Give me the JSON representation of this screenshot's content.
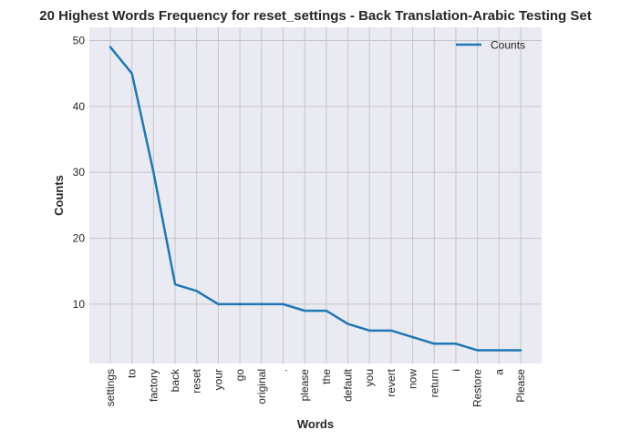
{
  "chart_data": {
    "type": "line",
    "title": "20 Highest Words Frequency for reset_settings - Back Translation-Arabic Testing Set",
    "xlabel": "Words",
    "ylabel": "Counts",
    "categories": [
      "settings",
      "to",
      "factory",
      "back",
      "reset",
      "your",
      "go",
      "original",
      ".",
      "please",
      "the",
      "default",
      "you",
      "revert",
      "now",
      "return",
      "i",
      "Restore",
      "a",
      "Please"
    ],
    "series": [
      {
        "name": "Counts",
        "color": "#1f77b4",
        "values": [
          49,
          45,
          30,
          13,
          12,
          10,
          10,
          10,
          10,
          9,
          9,
          7,
          6,
          6,
          5,
          4,
          4,
          3,
          3,
          3
        ]
      }
    ],
    "ylim": [
      1,
      52
    ],
    "yticks": [
      10,
      20,
      30,
      40,
      50
    ],
    "grid": true,
    "legend_position": "top-right",
    "background": "#eaeaf2",
    "grid_color": "#c4c4c8"
  }
}
